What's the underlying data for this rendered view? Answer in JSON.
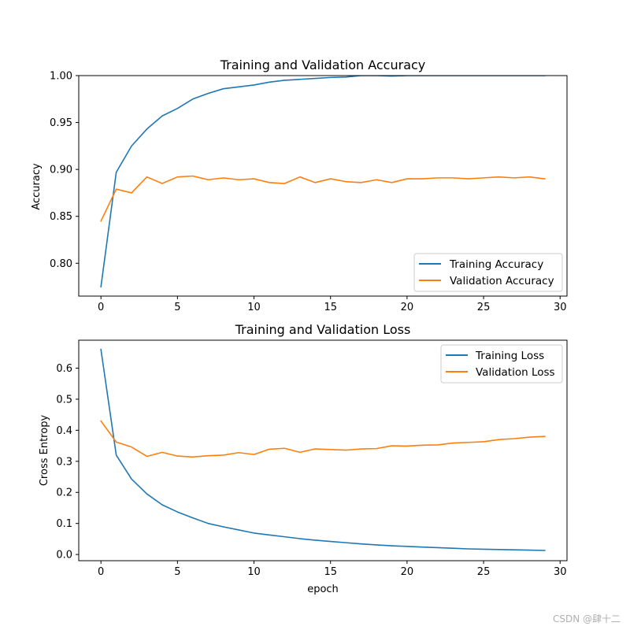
{
  "chart_data": [
    {
      "type": "line",
      "title": "Training and Validation Accuracy",
      "xlabel": "",
      "ylabel": "Accuracy",
      "xlim": [
        -1.45,
        30.45
      ],
      "ylim": [
        0.765,
        1.0
      ],
      "xticks": [
        0,
        5,
        10,
        15,
        20,
        25,
        30
      ],
      "yticks": [
        0.8,
        0.85,
        0.9,
        0.95,
        1.0
      ],
      "ytick_labels": [
        "0.80",
        "0.85",
        "0.90",
        "0.95",
        "1.00"
      ],
      "legend_loc": "lower-right",
      "x": [
        0,
        1,
        2,
        3,
        4,
        5,
        6,
        7,
        8,
        9,
        10,
        11,
        12,
        13,
        14,
        15,
        16,
        17,
        18,
        19,
        20,
        21,
        22,
        23,
        24,
        25,
        26,
        27,
        28,
        29
      ],
      "series": [
        {
          "name": "Training Accuracy",
          "color": "#1f77b4",
          "values": [
            0.775,
            0.897,
            0.925,
            0.943,
            0.957,
            0.965,
            0.975,
            0.981,
            0.986,
            0.988,
            0.99,
            0.993,
            0.995,
            0.996,
            0.997,
            0.998,
            0.9985,
            1.0,
            1.0,
            0.9995,
            1.0,
            1.0,
            1.0,
            1.0,
            1.0,
            1.0,
            1.0,
            1.0,
            1.0,
            1.0
          ]
        },
        {
          "name": "Validation Accuracy",
          "color": "#ff7f0e",
          "values": [
            0.845,
            0.879,
            0.875,
            0.892,
            0.885,
            0.892,
            0.893,
            0.889,
            0.891,
            0.889,
            0.89,
            0.886,
            0.885,
            0.892,
            0.886,
            0.89,
            0.887,
            0.886,
            0.889,
            0.886,
            0.89,
            0.89,
            0.891,
            0.891,
            0.89,
            0.891,
            0.892,
            0.891,
            0.892,
            0.89
          ]
        }
      ]
    },
    {
      "type": "line",
      "title": "Training and Validation Loss",
      "xlabel": "epoch",
      "ylabel": "Cross Entropy",
      "xlim": [
        -1.45,
        30.45
      ],
      "ylim": [
        -0.02,
        0.69
      ],
      "xticks": [
        0,
        5,
        10,
        15,
        20,
        25,
        30
      ],
      "yticks": [
        0.0,
        0.1,
        0.2,
        0.3,
        0.4,
        0.5,
        0.6
      ],
      "ytick_labels": [
        "0.0",
        "0.1",
        "0.2",
        "0.3",
        "0.4",
        "0.5",
        "0.6"
      ],
      "legend_loc": "upper-right",
      "x": [
        0,
        1,
        2,
        3,
        4,
        5,
        6,
        7,
        8,
        9,
        10,
        11,
        12,
        13,
        14,
        15,
        16,
        17,
        18,
        19,
        20,
        21,
        22,
        23,
        24,
        25,
        26,
        27,
        28,
        29
      ],
      "series": [
        {
          "name": "Training Loss",
          "color": "#1f77b4",
          "values": [
            0.66,
            0.32,
            0.243,
            0.195,
            0.16,
            0.137,
            0.118,
            0.1,
            0.089,
            0.079,
            0.069,
            0.063,
            0.057,
            0.051,
            0.046,
            0.042,
            0.038,
            0.034,
            0.031,
            0.028,
            0.026,
            0.024,
            0.022,
            0.02,
            0.018,
            0.017,
            0.016,
            0.015,
            0.014,
            0.013
          ]
        },
        {
          "name": "Validation Loss",
          "color": "#ff7f0e",
          "values": [
            0.43,
            0.362,
            0.346,
            0.316,
            0.329,
            0.317,
            0.314,
            0.318,
            0.32,
            0.328,
            0.322,
            0.339,
            0.342,
            0.329,
            0.34,
            0.338,
            0.336,
            0.34,
            0.341,
            0.35,
            0.349,
            0.352,
            0.353,
            0.359,
            0.361,
            0.363,
            0.37,
            0.373,
            0.378,
            0.38
          ]
        }
      ]
    }
  ],
  "watermark": "CSDN @肆十二"
}
